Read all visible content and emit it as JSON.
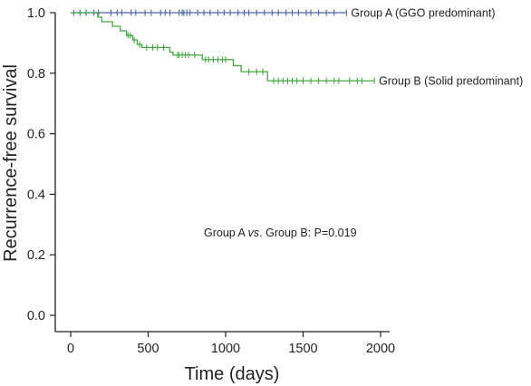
{
  "chart_data": {
    "type": "line",
    "subtype": "kaplan-meier",
    "title": "",
    "xlabel": "Time (days)",
    "ylabel": "Recurrence-free survival",
    "xlim": [
      0,
      2000
    ],
    "ylim": [
      0,
      1.0
    ],
    "xticks": [
      "0",
      "500",
      "1000",
      "1500",
      "2000"
    ],
    "yticks": [
      "0.0",
      "0.2",
      "0.4",
      "0.6",
      "0.8",
      "1.0"
    ],
    "xtick_values": [
      0,
      500,
      1000,
      1500,
      2000
    ],
    "ytick_values": [
      0,
      0.2,
      0.4,
      0.6,
      0.8,
      1.0
    ],
    "grid": false,
    "legend": "inline labels at line ends",
    "annotation": {
      "prefix": "Group A ",
      "italic": "vs",
      "suffix": ". Group B: P=0.019"
    },
    "series": [
      {
        "name": "Group A (GGO predominant)",
        "color": "#4a66ac",
        "steps": [
          [
            0,
            1.0
          ],
          [
            1780,
            1.0
          ]
        ],
        "censor_x": [
          20,
          60,
          100,
          150,
          180,
          260,
          300,
          330,
          390,
          420,
          480,
          520,
          580,
          610,
          640,
          700,
          720,
          730,
          750,
          770,
          820,
          860,
          900,
          950,
          990,
          1030,
          1080,
          1120,
          1150,
          1200,
          1250,
          1300,
          1340,
          1390,
          1430,
          1470,
          1520,
          1550,
          1600,
          1650,
          1700,
          1780
        ]
      },
      {
        "name": "Group B (Solid predominant)",
        "color": "#43a843",
        "steps": [
          [
            0,
            1.0
          ],
          [
            175,
            1.0
          ],
          [
            175,
            0.985
          ],
          [
            200,
            0.985
          ],
          [
            200,
            0.97
          ],
          [
            270,
            0.97
          ],
          [
            270,
            0.955
          ],
          [
            320,
            0.955
          ],
          [
            320,
            0.94
          ],
          [
            360,
            0.94
          ],
          [
            360,
            0.925
          ],
          [
            400,
            0.925
          ],
          [
            400,
            0.91
          ],
          [
            430,
            0.91
          ],
          [
            430,
            0.895
          ],
          [
            460,
            0.895
          ],
          [
            460,
            0.885
          ],
          [
            640,
            0.885
          ],
          [
            640,
            0.87
          ],
          [
            660,
            0.87
          ],
          [
            660,
            0.86
          ],
          [
            850,
            0.86
          ],
          [
            850,
            0.845
          ],
          [
            1050,
            0.845
          ],
          [
            1050,
            0.825
          ],
          [
            1100,
            0.825
          ],
          [
            1100,
            0.805
          ],
          [
            1270,
            0.805
          ],
          [
            1270,
            0.775
          ],
          [
            1960,
            0.775
          ]
        ],
        "censor_x": [
          370,
          385,
          410,
          445,
          490,
          530,
          560,
          600,
          690,
          700,
          720,
          740,
          760,
          800,
          870,
          890,
          920,
          950,
          980,
          1000,
          1150,
          1200,
          1240,
          1310,
          1340,
          1370,
          1400,
          1430,
          1460,
          1500,
          1550,
          1600,
          1650,
          1700,
          1730,
          1800,
          1850,
          1880,
          1960
        ]
      }
    ]
  }
}
